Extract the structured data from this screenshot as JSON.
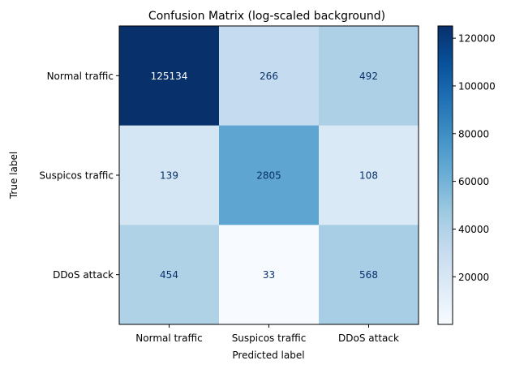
{
  "chart_data": {
    "type": "heatmap",
    "title": "Confusion Matrix (log-scaled background)",
    "xlabel": "Predicted label",
    "ylabel": "True label",
    "row_labels": [
      "Normal traffic",
      "Suspicos traffic",
      "DDoS attack"
    ],
    "col_labels": [
      "Normal traffic",
      "Suspicos traffic",
      "DDoS attack"
    ],
    "values": [
      [
        125134,
        266,
        492
      ],
      [
        139,
        2805,
        108
      ],
      [
        454,
        33,
        568
      ]
    ],
    "colormap": "Blues",
    "color_scale": "log",
    "colorbar": {
      "range": [
        33,
        125134
      ],
      "ticks": [
        20000,
        40000,
        60000,
        80000,
        100000,
        120000
      ],
      "tick_labels": [
        "20000",
        "40000",
        "60000",
        "80000",
        "100000",
        "120000"
      ]
    },
    "grid": false
  }
}
